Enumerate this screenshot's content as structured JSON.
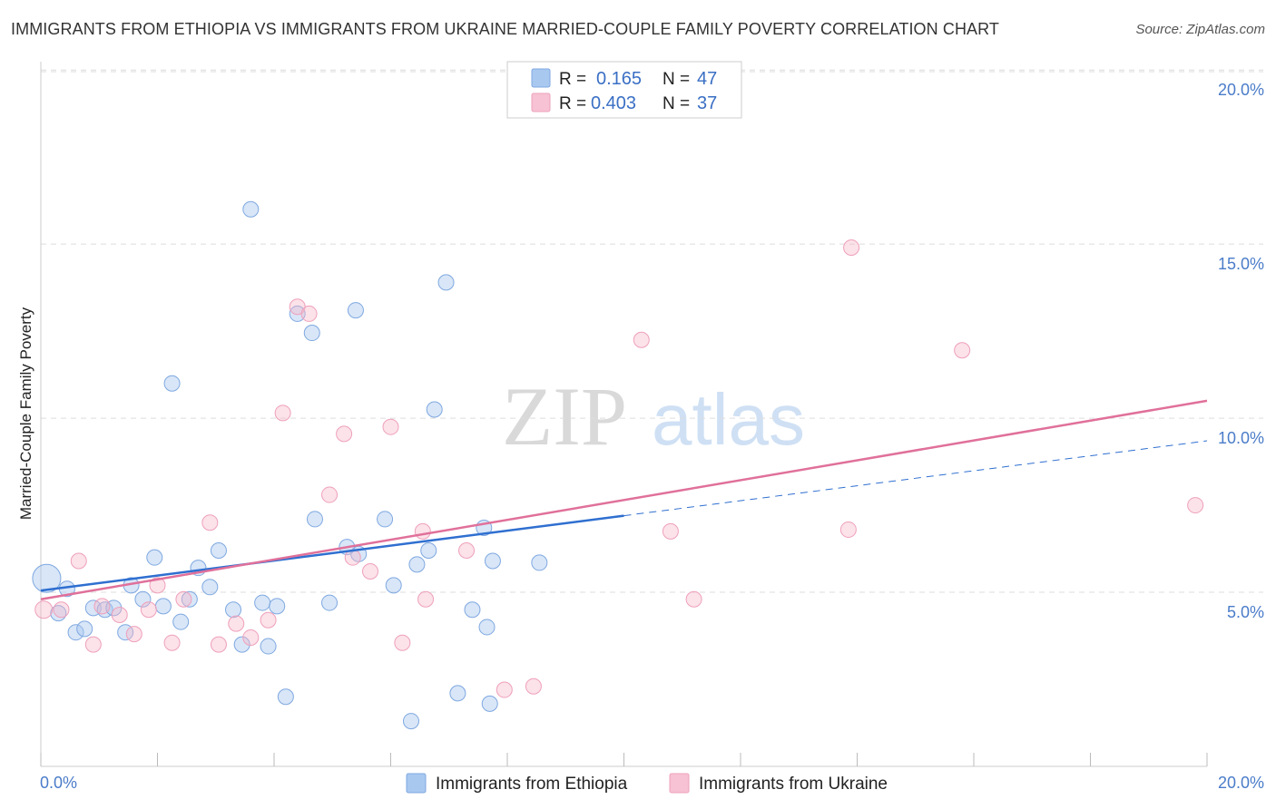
{
  "title": "IMMIGRANTS FROM ETHIOPIA VS IMMIGRANTS FROM UKRAINE MARRIED-COUPLE FAMILY POVERTY CORRELATION CHART",
  "source": "Source: ZipAtlas.com",
  "watermark": {
    "zip": "ZIP",
    "atlas": "atlas"
  },
  "legend": {
    "r_label": "R =",
    "n_label": "N =",
    "rows": [
      {
        "r": "0.165",
        "n": "47"
      },
      {
        "r": "0.403",
        "n": "37"
      }
    ]
  },
  "bottom_legend": [
    "Immigrants from Ethiopia",
    "Immigrants from Ukraine"
  ],
  "chart_data": {
    "type": "scatter",
    "title": "IMMIGRANTS FROM ETHIOPIA VS IMMIGRANTS FROM UKRAINE MARRIED-COUPLE FAMILY POVERTY CORRELATION CHART",
    "xlabel": "",
    "ylabel": "Married-Couple Family Poverty",
    "xlim": [
      0,
      20
    ],
    "ylim": [
      0,
      20.5
    ],
    "x_tick_labels": [
      "0.0%",
      "20.0%"
    ],
    "y_tick_values": [
      5,
      10,
      15,
      20
    ],
    "y_tick_labels": [
      "5.0%",
      "10.0%",
      "15.0%",
      "20.0%"
    ],
    "grid": true,
    "colors": {
      "ethiopia": "#a9c8f0",
      "ethiopia_line": "#2f6fd0",
      "ukraine": "#f7b6c9",
      "ukraine_line": "#e0709a"
    },
    "series": [
      {
        "name": "Immigrants from Ethiopia",
        "r": 0.165,
        "n": 47,
        "trend": {
          "x0": 0,
          "y0": 5.05,
          "x1": 10,
          "y1": 7.2,
          "dash_to_x": 20,
          "dash_to_y": 9.35
        },
        "points": [
          [
            0.1,
            5.4,
            28
          ],
          [
            0.3,
            4.4,
            14
          ],
          [
            0.45,
            5.1,
            14
          ],
          [
            0.6,
            3.85,
            14
          ],
          [
            0.75,
            3.95,
            14
          ],
          [
            0.9,
            4.55,
            14
          ],
          [
            1.1,
            4.5,
            14
          ],
          [
            1.25,
            4.55,
            14
          ],
          [
            1.45,
            3.85,
            14
          ],
          [
            1.55,
            5.2,
            14
          ],
          [
            1.75,
            4.8,
            14
          ],
          [
            1.95,
            6.0,
            14
          ],
          [
            2.1,
            4.6,
            14
          ],
          [
            2.25,
            11.0,
            14
          ],
          [
            2.4,
            4.15,
            14
          ],
          [
            2.55,
            4.8,
            14
          ],
          [
            2.7,
            5.7,
            14
          ],
          [
            2.9,
            5.15,
            14
          ],
          [
            3.05,
            6.2,
            14
          ],
          [
            3.3,
            4.5,
            14
          ],
          [
            3.45,
            3.5,
            14
          ],
          [
            3.6,
            16.0,
            14
          ],
          [
            3.8,
            4.7,
            14
          ],
          [
            3.9,
            3.45,
            14
          ],
          [
            4.05,
            4.6,
            14
          ],
          [
            4.2,
            2.0,
            14
          ],
          [
            4.4,
            13.0,
            14
          ],
          [
            4.65,
            12.45,
            14
          ],
          [
            4.7,
            7.1,
            14
          ],
          [
            4.95,
            4.7,
            14
          ],
          [
            5.25,
            6.3,
            14
          ],
          [
            5.4,
            13.1,
            14
          ],
          [
            5.45,
            6.1,
            14
          ],
          [
            5.9,
            7.1,
            14
          ],
          [
            6.05,
            5.2,
            14
          ],
          [
            6.35,
            1.3,
            14
          ],
          [
            6.45,
            5.8,
            14
          ],
          [
            6.65,
            6.2,
            14
          ],
          [
            6.75,
            10.25,
            14
          ],
          [
            6.95,
            13.9,
            14
          ],
          [
            7.15,
            2.1,
            14
          ],
          [
            7.4,
            4.5,
            14
          ],
          [
            7.6,
            6.85,
            14
          ],
          [
            7.65,
            4.0,
            14
          ],
          [
            7.7,
            1.8,
            14
          ],
          [
            7.75,
            5.9,
            14
          ],
          [
            8.55,
            5.85,
            14
          ]
        ]
      },
      {
        "name": "Immigrants from Ukraine",
        "r": 0.403,
        "n": 37,
        "trend": {
          "x0": 0,
          "y0": 4.8,
          "x1": 20,
          "y1": 10.5
        },
        "points": [
          [
            0.05,
            4.5,
            16
          ],
          [
            0.35,
            4.5,
            14
          ],
          [
            0.65,
            5.9,
            14
          ],
          [
            0.9,
            3.5,
            14
          ],
          [
            1.05,
            4.6,
            14
          ],
          [
            1.35,
            4.35,
            14
          ],
          [
            1.6,
            3.8,
            14
          ],
          [
            1.85,
            4.5,
            14
          ],
          [
            2.0,
            5.2,
            14
          ],
          [
            2.25,
            3.55,
            14
          ],
          [
            2.45,
            4.8,
            14
          ],
          [
            2.9,
            7.0,
            14
          ],
          [
            3.05,
            3.5,
            14
          ],
          [
            3.35,
            4.1,
            14
          ],
          [
            3.6,
            3.7,
            14
          ],
          [
            3.9,
            4.2,
            14
          ],
          [
            4.15,
            10.15,
            14
          ],
          [
            4.4,
            13.2,
            14
          ],
          [
            4.6,
            13.0,
            14
          ],
          [
            4.95,
            7.8,
            14
          ],
          [
            5.2,
            9.55,
            14
          ],
          [
            5.35,
            6.0,
            14
          ],
          [
            5.65,
            5.6,
            14
          ],
          [
            6.0,
            9.75,
            14
          ],
          [
            6.2,
            3.55,
            14
          ],
          [
            6.55,
            6.75,
            14
          ],
          [
            6.6,
            4.8,
            14
          ],
          [
            7.3,
            6.2,
            14
          ],
          [
            7.95,
            2.2,
            14
          ],
          [
            8.45,
            2.3,
            14
          ],
          [
            10.3,
            12.25,
            14
          ],
          [
            10.8,
            6.75,
            14
          ],
          [
            11.2,
            4.8,
            14
          ],
          [
            13.9,
            14.9,
            14
          ],
          [
            13.85,
            6.8,
            14
          ],
          [
            15.8,
            11.95,
            14
          ],
          [
            19.8,
            7.5,
            14
          ]
        ]
      }
    ]
  }
}
